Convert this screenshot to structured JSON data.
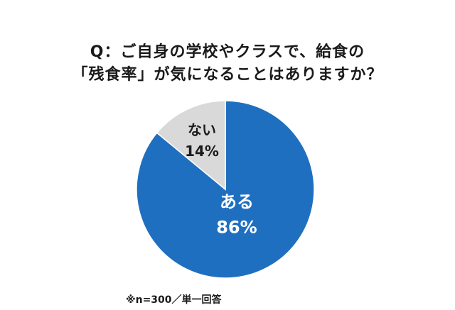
{
  "title_line1": "Q：ご自身の学校やクラスで、給食の",
  "title_line2": "「残食率」が気になることはありますか？",
  "note": "※n=300／単一回答",
  "chart_data": {
    "type": "pie",
    "slices": [
      {
        "label": "ある",
        "value": 86,
        "value_label": "86%",
        "color": "#1f6fc0",
        "text_color": "#ffffff"
      },
      {
        "label": "ない",
        "value": 14,
        "value_label": "14%",
        "color": "#d9d9d9",
        "text_color": "#1a1a1a"
      }
    ]
  }
}
